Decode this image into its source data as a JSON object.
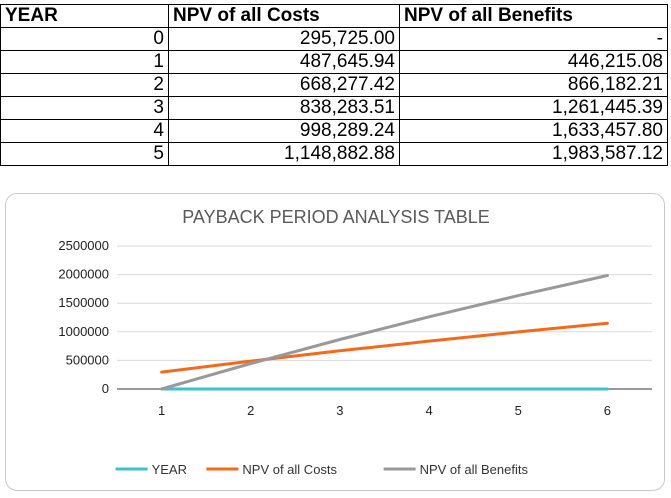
{
  "table": {
    "headers": [
      "YEAR",
      "NPV of all Costs",
      "NPV of all Benefits"
    ],
    "rows": [
      [
        "0",
        "295,725.00",
        "-"
      ],
      [
        "1",
        "487,645.94",
        "446,215.08"
      ],
      [
        "2",
        "668,277.42",
        "866,182.21"
      ],
      [
        "3",
        "838,283.51",
        "1,261,445.39"
      ],
      [
        "4",
        "998,289.24",
        "1,633,457.80"
      ],
      [
        "5",
        "1,148,882.88",
        "1,983,587.12"
      ]
    ]
  },
  "chart_data": {
    "type": "line",
    "title": "PAYBACK PERIOD ANALYSIS TABLE",
    "xlabel": "",
    "ylabel": "",
    "categories": [
      "1",
      "2",
      "3",
      "4",
      "5",
      "6"
    ],
    "y_ticks": [
      "0",
      "500000",
      "1000000",
      "1500000",
      "2000000",
      "2500000"
    ],
    "ylim": [
      0,
      2500000
    ],
    "grid": true,
    "legend_position": "bottom",
    "series": [
      {
        "name": "YEAR",
        "color": "#3fbfcf",
        "values": [
          0,
          1,
          2,
          3,
          4,
          5
        ]
      },
      {
        "name": "NPV of all Costs",
        "color": "#f26a1b",
        "values": [
          295725.0,
          487645.94,
          668277.42,
          838283.51,
          998289.24,
          1148882.88
        ]
      },
      {
        "name": "NPV of all Benefits",
        "color": "#999999",
        "values": [
          0,
          446215.08,
          866182.21,
          1261445.39,
          1633457.8,
          1983587.12
        ]
      }
    ]
  }
}
